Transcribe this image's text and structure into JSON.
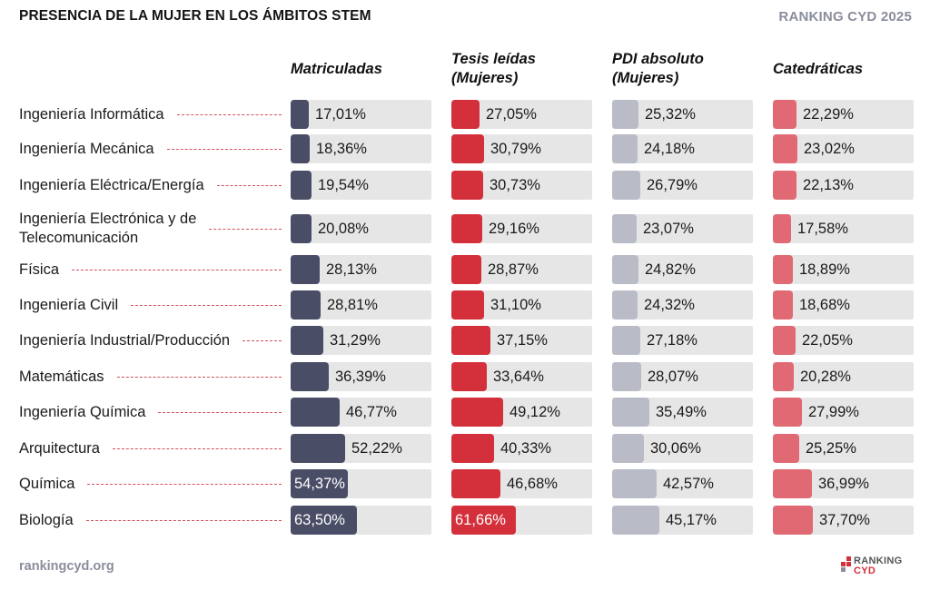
{
  "header": {
    "title": "PRESENCIA DE LA MUJER EN LOS ÁMBITOS STEM",
    "brand": "RANKING CYD 2025"
  },
  "footer": {
    "url": "rankingcyd.org",
    "logo_top": "RANKING",
    "logo_bottom": "CYD"
  },
  "colors": {
    "matriculadas": "#4a4d66",
    "tesis": "#d3303b",
    "pdi": "#b9bcc7",
    "catedraticas": "#e06973",
    "track": "#e6e6e6",
    "leader": "#d0505c"
  },
  "chart_data": {
    "type": "bar",
    "title": "PRESENCIA DE LA MUJER EN LOS ÁMBITOS STEM",
    "orientation": "horizontal",
    "unit": "%",
    "xlim": [
      0,
      100
    ],
    "categories": [
      [
        "Ingeniería Informática"
      ],
      [
        "Ingeniería Mecánica"
      ],
      [
        "Ingeniería Eléctrica/Energía"
      ],
      [
        "Ingeniería Electrónica y de",
        "Telecomunicación"
      ],
      [
        "Física"
      ],
      [
        "Ingeniería Civil"
      ],
      [
        "Ingeniería Industrial/Producción"
      ],
      [
        "Matemáticas"
      ],
      [
        "Ingeniería Química"
      ],
      [
        "Arquitectura"
      ],
      [
        "Química"
      ],
      [
        "Biología"
      ]
    ],
    "series": [
      {
        "name": [
          "Matriculadas"
        ],
        "color": "#4a4d66",
        "values": [
          17.01,
          18.36,
          19.54,
          20.08,
          28.13,
          28.81,
          31.29,
          36.39,
          46.77,
          52.22,
          54.37,
          63.5
        ],
        "labels": [
          "17,01%",
          "18,36%",
          "19,54%",
          "20,08%",
          "28,13%",
          "28,81%",
          "31,29%",
          "36,39%",
          "46,77%",
          "52,22%",
          "54,37%",
          "63,50%"
        ]
      },
      {
        "name": [
          "Tesis leídas",
          "(Mujeres)"
        ],
        "color": "#d3303b",
        "values": [
          27.05,
          30.79,
          30.73,
          29.16,
          28.87,
          31.1,
          37.15,
          33.64,
          49.12,
          40.33,
          46.68,
          61.66
        ],
        "labels": [
          "27,05%",
          "30,79%",
          "30,73%",
          "29,16%",
          "28,87%",
          "31,10%",
          "37,15%",
          "33,64%",
          "49,12%",
          "40,33%",
          "46,68%",
          "61,66%"
        ]
      },
      {
        "name": [
          "PDI absoluto",
          "(Mujeres)"
        ],
        "color": "#b9bcc7",
        "values": [
          25.32,
          24.18,
          26.79,
          23.07,
          24.82,
          24.32,
          27.18,
          28.07,
          35.49,
          30.06,
          42.57,
          45.17
        ],
        "labels": [
          "25,32%",
          "24,18%",
          "26,79%",
          "23,07%",
          "24,82%",
          "24,32%",
          "27,18%",
          "28,07%",
          "35,49%",
          "30,06%",
          "42,57%",
          "45,17%"
        ]
      },
      {
        "name": [
          "Catedráticas"
        ],
        "color": "#e06973",
        "values": [
          22.29,
          23.02,
          22.13,
          17.58,
          18.89,
          18.68,
          22.05,
          20.28,
          27.99,
          25.25,
          36.99,
          37.7
        ],
        "labels": [
          "22,29%",
          "23,02%",
          "22,13%",
          "17,58%",
          "18,89%",
          "18,68%",
          "22,05%",
          "20,28%",
          "27,99%",
          "25,25%",
          "36,99%",
          "37,70%"
        ]
      }
    ]
  }
}
